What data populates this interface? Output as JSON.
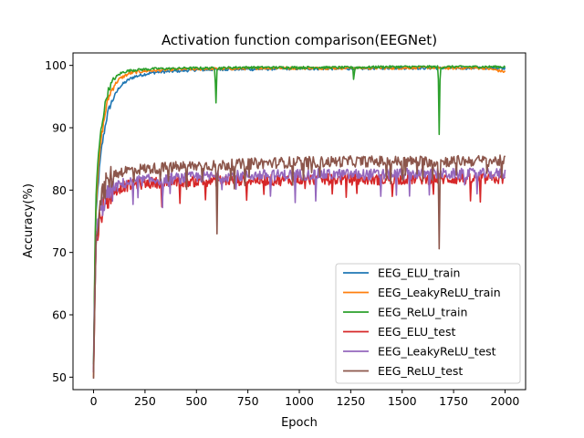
{
  "chart_data": {
    "type": "line",
    "title": "Activation function comparison(EEGNet)",
    "xlabel": "Epoch",
    "ylabel": "Accuracy(%)",
    "xlim": [
      -100,
      2100
    ],
    "ylim": [
      48,
      102
    ],
    "xticks": [
      0,
      250,
      500,
      750,
      1000,
      1250,
      1500,
      1750,
      2000
    ],
    "yticks": [
      50,
      60,
      70,
      80,
      90,
      100
    ],
    "grid": false,
    "legend_position": "lower-right",
    "series": [
      {
        "name": "EEG_ELU_train",
        "color": "#1f77b4",
        "x": [
          0,
          10,
          20,
          30,
          40,
          50,
          60,
          70,
          80,
          100,
          125,
          150,
          175,
          200,
          250,
          300,
          350,
          400,
          450,
          500,
          550,
          600,
          700,
          800,
          900,
          1000,
          1100,
          1200,
          1300,
          1400,
          1500,
          1600,
          1700,
          1800,
          1900,
          2000
        ],
        "y": [
          51,
          75,
          80,
          84,
          87,
          89,
          91,
          92.5,
          93.5,
          95,
          96.5,
          97.2,
          97.8,
          98.2,
          98.6,
          98.9,
          99.0,
          99.1,
          99.2,
          99.3,
          99.3,
          99.4,
          99.4,
          99.4,
          99.5,
          99.5,
          99.5,
          99.5,
          99.5,
          99.6,
          99.6,
          99.6,
          99.6,
          99.6,
          99.6,
          99.6
        ]
      },
      {
        "name": "EEG_LeakyReLU_train",
        "color": "#ff7f0e",
        "x": [
          0,
          10,
          20,
          30,
          40,
          50,
          60,
          70,
          80,
          100,
          125,
          150,
          175,
          200,
          250,
          300,
          350,
          400,
          450,
          500,
          550,
          600,
          700,
          800,
          900,
          1000,
          1100,
          1200,
          1300,
          1400,
          1500,
          1600,
          1700,
          1800,
          1900,
          2000
        ],
        "y": [
          50.5,
          77,
          82,
          86,
          89,
          91,
          93,
          94.5,
          95.5,
          96.8,
          97.8,
          98.3,
          98.7,
          98.9,
          99.1,
          99.2,
          99.3,
          99.4,
          99.4,
          99.4,
          99.5,
          99.5,
          99.5,
          99.6,
          99.6,
          99.6,
          99.6,
          99.6,
          99.6,
          99.6,
          99.6,
          99.7,
          99.6,
          99.6,
          99.6,
          99.0
        ]
      },
      {
        "name": "EEG_ReLU_train",
        "color": "#2ca02c",
        "x": [
          0,
          10,
          20,
          30,
          40,
          50,
          60,
          70,
          80,
          100,
          125,
          150,
          175,
          200,
          250,
          300,
          350,
          400,
          450,
          500,
          550,
          590,
          595,
          600,
          610,
          700,
          800,
          900,
          1000,
          1100,
          1200,
          1260,
          1265,
          1270,
          1300,
          1400,
          1500,
          1600,
          1675,
          1680,
          1685,
          1700,
          1800,
          1900,
          2000
        ],
        "y": [
          52,
          78,
          84,
          88,
          90.5,
          92.5,
          94.5,
          95.8,
          96.6,
          97.8,
          98.6,
          99.0,
          99.2,
          99.3,
          99.4,
          99.5,
          99.5,
          99.5,
          99.6,
          99.6,
          99.6,
          99.6,
          94.0,
          99.5,
          99.6,
          99.7,
          99.7,
          99.7,
          99.7,
          99.7,
          99.7,
          99.7,
          97.5,
          99.7,
          99.7,
          99.8,
          99.8,
          99.8,
          99.8,
          89.0,
          99.6,
          99.8,
          99.8,
          99.8,
          99.8
        ]
      },
      {
        "name": "EEG_ELU_test",
        "color": "#d62728",
        "x": [
          0,
          10,
          20,
          30,
          40,
          50,
          60,
          70,
          80,
          100,
          125,
          150,
          200,
          250,
          300,
          350,
          400,
          450,
          500,
          600,
          700,
          800,
          900,
          1000,
          1100,
          1200,
          1300,
          1400,
          1500,
          1600,
          1700,
          1800,
          1900,
          2000
        ],
        "y": [
          50.5,
          70,
          73.5,
          75.5,
          76.8,
          77.6,
          78.3,
          78.8,
          79.2,
          79.8,
          80.3,
          80.6,
          80.9,
          81.1,
          81.2,
          81.3,
          81.3,
          81.4,
          81.4,
          81.5,
          81.6,
          81.6,
          81.6,
          81.7,
          81.7,
          81.7,
          81.7,
          81.7,
          81.8,
          81.8,
          81.8,
          81.8,
          81.8,
          81.8
        ]
      },
      {
        "name": "EEG_LeakyReLU_test",
        "color": "#9467bd",
        "x": [
          0,
          10,
          20,
          30,
          40,
          50,
          60,
          70,
          80,
          100,
          125,
          150,
          200,
          250,
          300,
          330,
          335,
          340,
          350,
          400,
          450,
          500,
          600,
          700,
          800,
          900,
          1000,
          1100,
          1200,
          1300,
          1400,
          1500,
          1600,
          1700,
          1800,
          1900,
          2000
        ],
        "y": [
          51,
          71,
          74,
          76,
          77.3,
          78.2,
          78.8,
          79.3,
          79.7,
          80.3,
          80.8,
          81.1,
          81.4,
          81.6,
          81.7,
          81.7,
          77.2,
          81.7,
          81.8,
          81.9,
          82.0,
          82.1,
          82.2,
          82.3,
          82.4,
          82.4,
          82.5,
          82.5,
          82.5,
          82.5,
          82.5,
          82.6,
          82.6,
          82.6,
          82.6,
          82.6,
          82.6
        ]
      },
      {
        "name": "EEG_ReLU_test",
        "color": "#8c564b",
        "x": [
          0,
          10,
          20,
          30,
          40,
          50,
          60,
          70,
          80,
          100,
          125,
          150,
          200,
          250,
          300,
          350,
          400,
          450,
          500,
          580,
          595,
          600,
          605,
          700,
          800,
          900,
          1000,
          1100,
          1200,
          1300,
          1400,
          1500,
          1600,
          1675,
          1680,
          1685,
          1700,
          1800,
          1900,
          2000
        ],
        "y": [
          50,
          71,
          75,
          77.5,
          79,
          80,
          80.8,
          81.4,
          81.9,
          82.5,
          82.9,
          83.1,
          83.3,
          83.4,
          83.5,
          83.6,
          83.7,
          83.8,
          83.9,
          84.0,
          84.0,
          73.0,
          84.0,
          84.1,
          84.3,
          84.4,
          84.5,
          84.5,
          84.6,
          84.6,
          84.6,
          84.6,
          84.6,
          84.6,
          70.6,
          84.5,
          84.6,
          84.7,
          84.7,
          84.7
        ]
      }
    ]
  }
}
